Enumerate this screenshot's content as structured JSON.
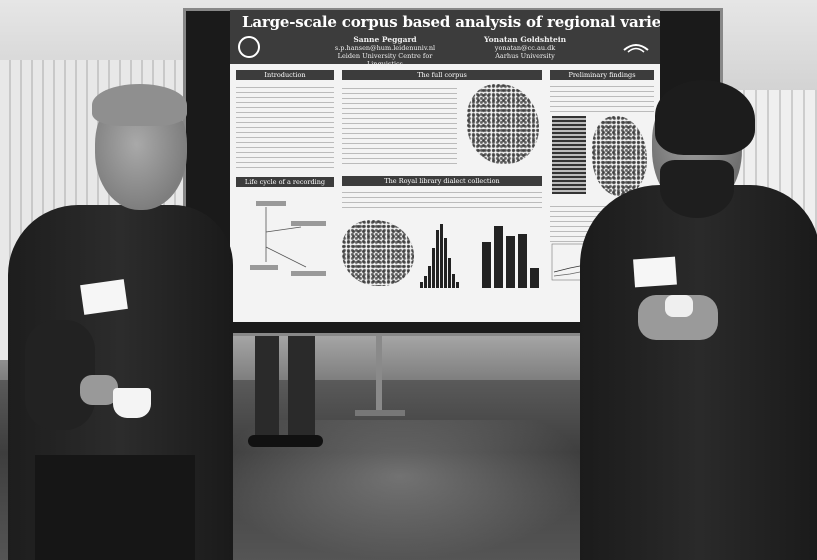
{
  "poster": {
    "title": "Large-scale corpus based analysis of regional varieties of Danish",
    "author_1": {
      "name": "Sanne Peggard",
      "email": "s.p.hansen@hum.leidenuniv.nl",
      "affiliation": "Leiden University Centre for Linguistics"
    },
    "author_2": {
      "name": "Yonatan Goldshtein",
      "email": "yonatan@cc.au.dk",
      "affiliation": "Aarhus University"
    },
    "sections": {
      "introduction": "Introduction",
      "full_corpus": "The full corpus",
      "preliminary": "Preliminary findings",
      "life_cycle": "Life cycle of a recording",
      "royal_library": "The Royal library dialect collection"
    }
  }
}
